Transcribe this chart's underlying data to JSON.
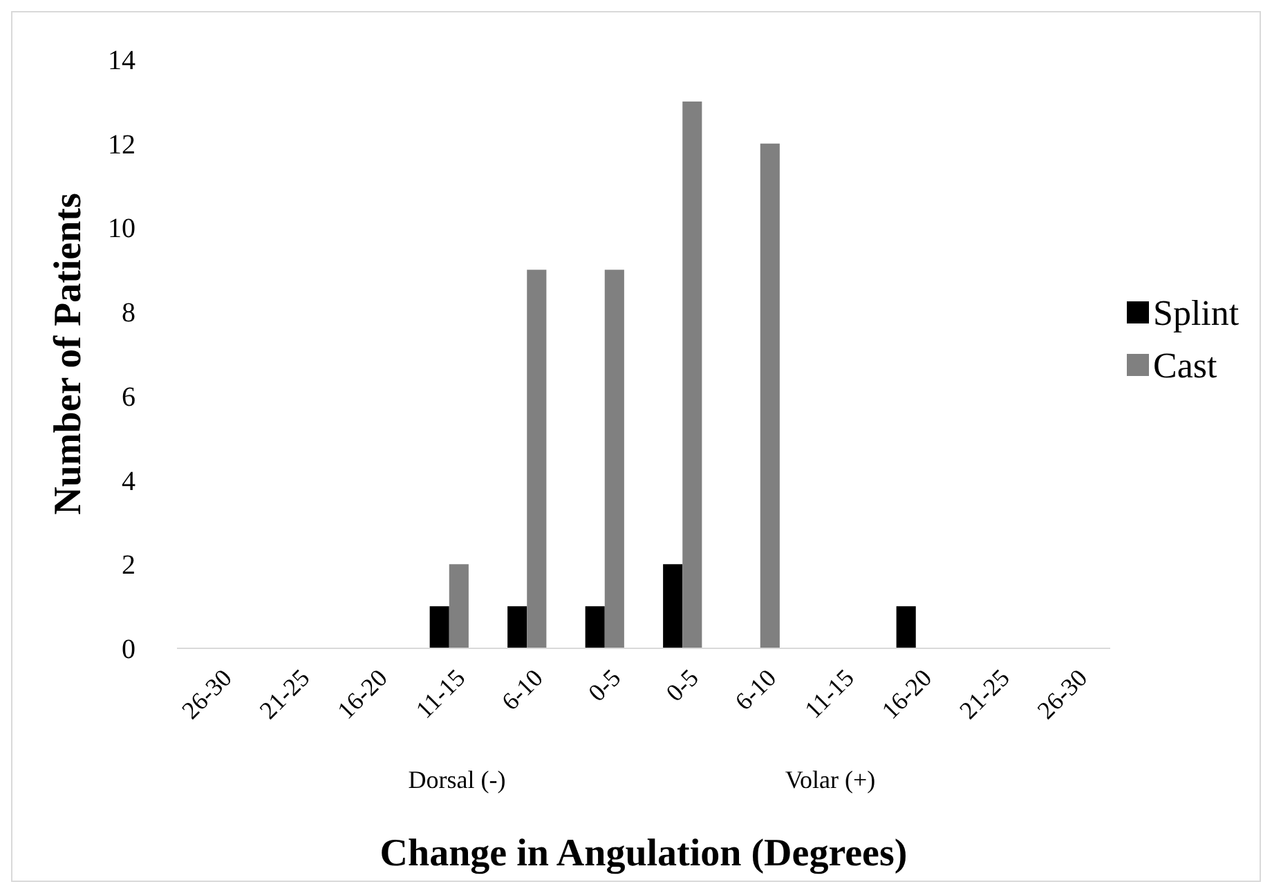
{
  "chart_data": {
    "type": "bar",
    "xlabel": "Change in Angulation (Degrees)",
    "ylabel": "Number of Patients",
    "categories": [
      "26-30",
      "21-25",
      "16-20",
      "11-15",
      "6-10",
      "0-5",
      "0-5",
      "6-10",
      "11-15",
      "16-20",
      "21-25",
      "26-30"
    ],
    "series": [
      {
        "name": "Splint",
        "color": "#000000",
        "values": [
          0,
          0,
          0,
          1,
          1,
          1,
          2,
          0,
          0,
          1,
          0,
          0
        ]
      },
      {
        "name": "Cast",
        "color": "#808080",
        "values": [
          0,
          0,
          0,
          2,
          9,
          9,
          13,
          12,
          0,
          0,
          0,
          0
        ]
      }
    ],
    "ylim": [
      0,
      14
    ],
    "yticks": [
      0,
      2,
      4,
      6,
      8,
      10,
      12,
      14
    ],
    "grid": false,
    "legend": "right",
    "annotations": [
      "Dorsal (-)",
      "Volar (+)"
    ]
  }
}
